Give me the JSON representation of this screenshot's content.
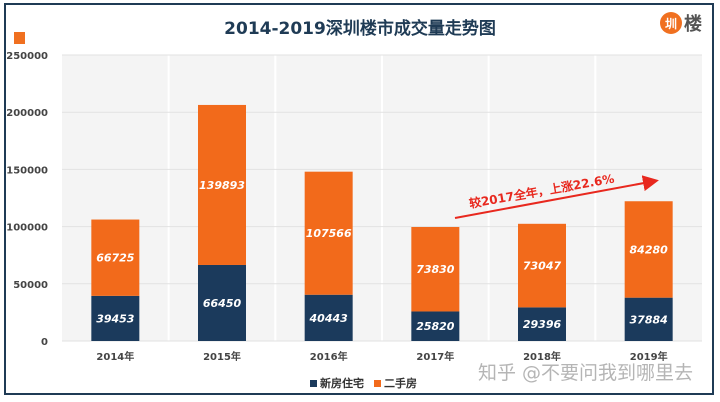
{
  "chart_data": {
    "type": "bar",
    "stacked": true,
    "title": "2014-2019深圳楼市成交量走势图",
    "categories": [
      "2014年",
      "2015年",
      "2016年",
      "2017年",
      "2018年",
      "2019年"
    ],
    "series": [
      {
        "name": "新房住宅",
        "color": "#1b3a5c",
        "values": [
          39453,
          66450,
          40443,
          25820,
          29396,
          37884
        ]
      },
      {
        "name": "二手房",
        "color": "#f26a1b",
        "values": [
          66725,
          139893,
          107566,
          73830,
          73047,
          84280
        ]
      }
    ],
    "ylim": [
      0,
      250000
    ],
    "yticks": [
      0,
      50000,
      100000,
      150000,
      200000,
      250000
    ],
    "grid": true,
    "legend": "bottom",
    "annotation": "较2017全年，上涨22.6%"
  },
  "logo_text": "圳楼",
  "logo_circle": "圳",
  "logo_char": "楼",
  "watermark": "知乎 @不要问我到哪里去"
}
